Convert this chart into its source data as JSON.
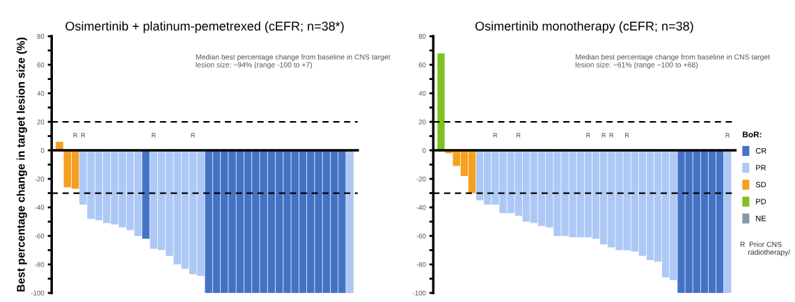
{
  "chart_data": [
    {
      "type": "bar",
      "title": "Osimertinib + platinum-pemetrexed (cEFR; n=38*)",
      "ylabel": "Best percentage change in target lesion size (%)",
      "categories": [
        null,
        null,
        null,
        null,
        null,
        null,
        null,
        null,
        null,
        null,
        null,
        null,
        null,
        null,
        null,
        null,
        null,
        null,
        null,
        null,
        null,
        null,
        null,
        null,
        null,
        null,
        null,
        null,
        null,
        null,
        null,
        null,
        null,
        null,
        null,
        null,
        null,
        null
      ],
      "ylim": [
        -100,
        80
      ],
      "yticks": [
        -100,
        {
          "value": -90,
          "label": null
        },
        -80,
        {
          "value": -70,
          "label": null
        },
        -60,
        {
          "value": -50,
          "label": null
        },
        -40,
        {
          "value": -30,
          "label": null
        },
        -20,
        {
          "value": -10,
          "label": null
        },
        0,
        {
          "value": 10,
          "label": null
        },
        20,
        {
          "value": 30,
          "label": null
        },
        40,
        {
          "value": 50,
          "label": null
        },
        60,
        {
          "value": 70,
          "label": null
        },
        80
      ],
      "tick_labels": "y",
      "legend": false,
      "series": [
        {
          "color": "#4472c4",
          "values": [
            null,
            null,
            null,
            null,
            null,
            null,
            null,
            null,
            null,
            null,
            null,
            -62,
            null,
            null,
            null,
            null,
            null,
            null,
            null,
            -100,
            -100,
            -100,
            -100,
            -100,
            -100,
            -100,
            -100,
            -100,
            -100,
            -100,
            -100,
            -100,
            -100,
            -100,
            -100,
            -100,
            -100,
            null
          ]
        },
        {
          "color": "#adc8f5",
          "values": [
            null,
            null,
            null,
            -38,
            -48,
            -49,
            -51,
            -52,
            -54,
            -56,
            -60,
            null,
            -69,
            -70,
            -74,
            -80,
            -83,
            -87,
            -88,
            null,
            null,
            null,
            null,
            null,
            null,
            null,
            null,
            null,
            null,
            null,
            null,
            null,
            null,
            null,
            null,
            null,
            null,
            -100
          ]
        },
        {
          "color": "#f5a020",
          "values": [
            6,
            -26,
            -27,
            null,
            null,
            null,
            null,
            null,
            null,
            null,
            null,
            null,
            null,
            null,
            null,
            null,
            null,
            null,
            null,
            null,
            null,
            null,
            null,
            null,
            null,
            null,
            null,
            null,
            null,
            null,
            null,
            null,
            null,
            null,
            null,
            null,
            null,
            null
          ]
        }
      ],
      "value_labels": [
        null,
        null,
        "R",
        "R",
        null,
        null,
        null,
        null,
        null,
        null,
        null,
        null,
        "R",
        null,
        null,
        null,
        null,
        "R",
        null,
        null,
        null,
        null,
        null,
        null,
        null,
        null,
        null,
        null,
        null,
        null,
        null,
        null,
        null,
        null,
        null,
        null,
        null,
        null
      ],
      "ref_lines": [
        {
          "axis": "y",
          "value": 20,
          "color": "#000000",
          "line_style": "dashed"
        },
        {
          "axis": "y",
          "value": -30,
          "color": "#000000",
          "line_style": "dashed"
        }
      ],
      "annotations": [
        "Median best percentage change from baseline in CNS target\nlesion size: −94% (range -100 to +7)"
      ]
    },
    {
      "type": "bar",
      "title": "Osimertinib monotherapy (cEFR; n=38)",
      "legend_title": "BoR:",
      "categories": [
        null,
        null,
        null,
        null,
        null,
        null,
        null,
        null,
        null,
        null,
        null,
        null,
        null,
        null,
        null,
        null,
        null,
        null,
        null,
        null,
        null,
        null,
        null,
        null,
        null,
        null,
        null,
        null,
        null,
        null,
        null,
        null,
        null,
        null,
        null,
        null,
        null,
        null
      ],
      "ylim": [
        -100,
        80
      ],
      "yticks": [
        -100,
        {
          "value": -90,
          "label": null
        },
        -80,
        {
          "value": -70,
          "label": null
        },
        -60,
        {
          "value": -50,
          "label": null
        },
        -40,
        {
          "value": -30,
          "label": null
        },
        -20,
        {
          "value": -10,
          "label": null
        },
        0,
        {
          "value": 10,
          "label": null
        },
        20,
        {
          "value": 30,
          "label": null
        },
        40,
        {
          "value": 50,
          "label": null
        },
        60,
        {
          "value": 70,
          "label": null
        },
        80
      ],
      "tick_labels": "y",
      "legend": "right",
      "series": [
        {
          "name": "CR",
          "color": "#4472c4",
          "values": [
            null,
            null,
            null,
            null,
            null,
            null,
            null,
            null,
            null,
            null,
            null,
            null,
            null,
            null,
            null,
            null,
            null,
            null,
            null,
            null,
            null,
            null,
            null,
            null,
            null,
            null,
            null,
            null,
            null,
            null,
            null,
            -100,
            -100,
            -100,
            -100,
            -100,
            -100,
            null
          ]
        },
        {
          "name": "PR",
          "color": "#adc8f5",
          "values": [
            null,
            null,
            null,
            null,
            null,
            -35,
            -38,
            -38,
            -44,
            -44,
            -46,
            -50,
            -51,
            -53,
            -54,
            -60,
            -60,
            -61,
            -61,
            -61,
            -62,
            -66,
            -68,
            -70,
            -70,
            -71,
            -74,
            -77,
            -78,
            -89,
            -91,
            null,
            null,
            null,
            null,
            null,
            null,
            -100
          ]
        },
        {
          "name": "SD",
          "color": "#f5a020",
          "values": [
            null,
            -2,
            -11,
            -18,
            -30,
            null,
            null,
            null,
            null,
            null,
            null,
            null,
            null,
            null,
            null,
            null,
            null,
            null,
            null,
            null,
            null,
            null,
            null,
            null,
            null,
            null,
            null,
            null,
            null,
            null,
            null,
            null,
            null,
            null,
            null,
            null,
            null,
            null
          ]
        },
        {
          "name": "PD",
          "color": "#7dc21e",
          "values": [
            68,
            null,
            null,
            null,
            null,
            null,
            null,
            null,
            null,
            null,
            null,
            null,
            null,
            null,
            null,
            null,
            null,
            null,
            null,
            null,
            null,
            null,
            null,
            null,
            null,
            null,
            null,
            null,
            null,
            null,
            null,
            null,
            null,
            null,
            null,
            null,
            null,
            null
          ]
        },
        {
          "name": "NE",
          "color": "#8497a8",
          "values": [
            null,
            null,
            null,
            null,
            null,
            null,
            null,
            null,
            null,
            null,
            null,
            null,
            null,
            null,
            null,
            null,
            null,
            null,
            null,
            null,
            null,
            null,
            null,
            null,
            null,
            null,
            null,
            null,
            null,
            null,
            null,
            null,
            null,
            null,
            null,
            null,
            null,
            null
          ]
        }
      ],
      "value_labels": [
        null,
        null,
        null,
        null,
        null,
        null,
        null,
        "R",
        null,
        null,
        "R",
        null,
        null,
        null,
        null,
        null,
        null,
        null,
        null,
        "R",
        null,
        "R",
        "R",
        null,
        "R",
        null,
        null,
        null,
        null,
        null,
        null,
        null,
        null,
        null,
        null,
        null,
        null,
        "R"
      ],
      "ref_lines": [
        {
          "axis": "y",
          "value": 20,
          "color": "#000000",
          "line_style": "dashed"
        },
        {
          "axis": "y",
          "value": -30,
          "color": "#000000",
          "line_style": "dashed"
        }
      ],
      "annotations": [
        "Median best percentage change from baseline in CNS target\nlesion size: −61% (range −100 to +68)",
        "R  Prior CNS\n    radiotherapy/"
      ]
    }
  ]
}
